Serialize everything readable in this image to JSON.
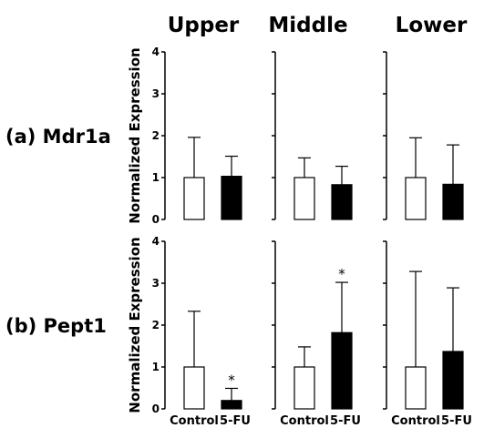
{
  "chart_data": {
    "type": "bar",
    "column_titles": [
      "Upper",
      "Middle",
      "Lower"
    ],
    "row_labels": [
      "(a) Mdr1a",
      "(b) Pept1"
    ],
    "ylabel": "Normalized Expression",
    "ylim": [
      0,
      4
    ],
    "yticks": [
      "0",
      "1",
      "2",
      "3",
      "4"
    ],
    "categories": [
      "Control",
      "5-FU"
    ],
    "series_colors": {
      "Control": "#ffffff",
      "5-FU": "#000000"
    },
    "panels": [
      {
        "row": 0,
        "col": 0,
        "values": [
          1.0,
          1.03
        ],
        "errors": [
          0.96,
          0.48
        ],
        "significance": [
          "",
          ""
        ]
      },
      {
        "row": 0,
        "col": 1,
        "values": [
          1.0,
          0.83
        ],
        "errors": [
          0.47,
          0.44
        ],
        "significance": [
          "",
          ""
        ]
      },
      {
        "row": 0,
        "col": 2,
        "values": [
          1.0,
          0.84
        ],
        "errors": [
          0.95,
          0.94
        ],
        "significance": [
          "",
          ""
        ]
      },
      {
        "row": 1,
        "col": 0,
        "values": [
          1.0,
          0.2
        ],
        "errors": [
          1.33,
          0.29
        ],
        "significance": [
          "",
          "*"
        ]
      },
      {
        "row": 1,
        "col": 1,
        "values": [
          1.0,
          1.82
        ],
        "errors": [
          0.48,
          1.2
        ],
        "significance": [
          "",
          "*"
        ]
      },
      {
        "row": 1,
        "col": 2,
        "values": [
          1.0,
          1.37
        ],
        "errors": [
          2.28,
          1.52
        ],
        "significance": [
          "",
          ""
        ]
      }
    ]
  }
}
